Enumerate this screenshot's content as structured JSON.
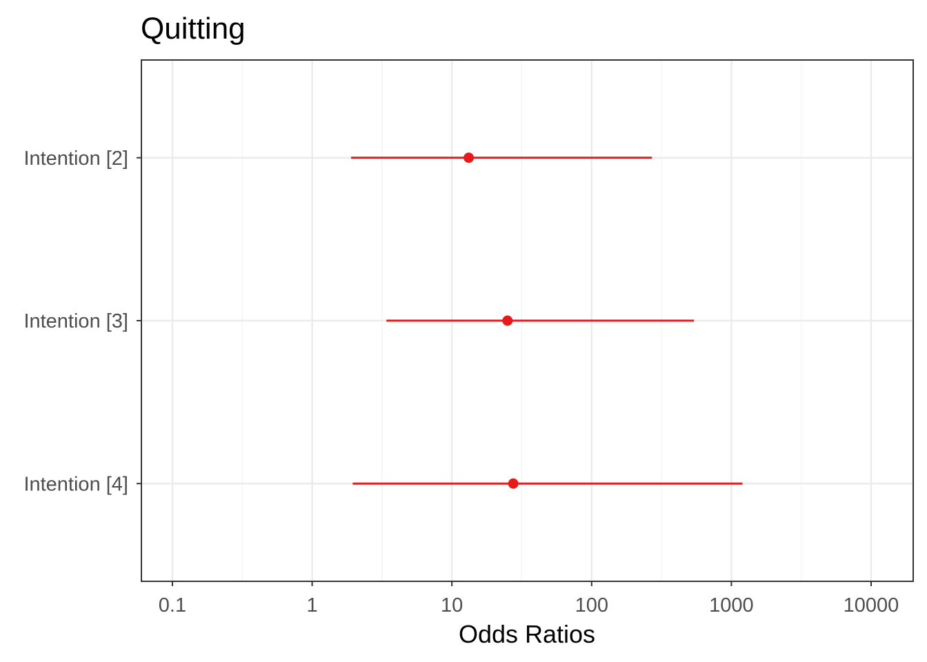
{
  "chart_data": {
    "type": "scatter",
    "title": "Quitting",
    "xlabel": "Odds Ratios",
    "ylabel": "",
    "x_scale": "log10",
    "xlim": [
      0.06,
      20000
    ],
    "x_ticks": [
      {
        "value": 0.1,
        "label": "0.1"
      },
      {
        "value": 1,
        "label": "1"
      },
      {
        "value": 10,
        "label": "10"
      },
      {
        "value": 100,
        "label": "100"
      },
      {
        "value": 1000,
        "label": "1000"
      },
      {
        "value": 10000,
        "label": "10000"
      }
    ],
    "grid": true,
    "color": "#e41a1c",
    "categories": [
      "Intention [2]",
      "Intention [3]",
      "Intention [4]"
    ],
    "points": [
      {
        "label": "Intention [2]",
        "estimate": 13.2,
        "ci_low": 1.9,
        "ci_high": 270
      },
      {
        "label": "Intention [3]",
        "estimate": 25,
        "ci_low": 3.4,
        "ci_high": 540
      },
      {
        "label": "Intention [4]",
        "estimate": 27.5,
        "ci_low": 1.95,
        "ci_high": 1200
      }
    ]
  }
}
